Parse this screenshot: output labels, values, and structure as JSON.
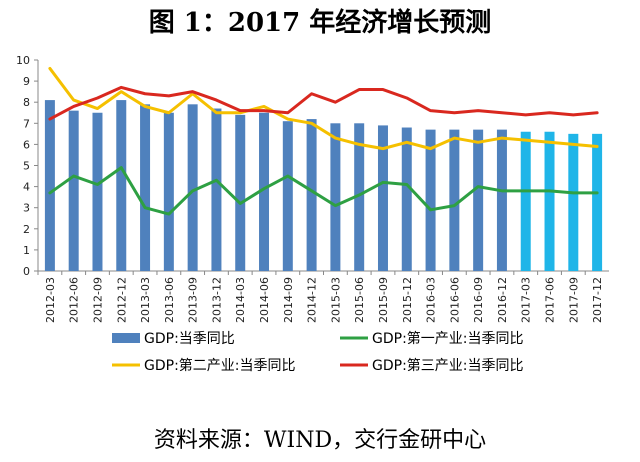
{
  "chart_data": {
    "type": "bar+line",
    "title": "图 1：2017 年经济增长预测",
    "categories": [
      "2012-03",
      "2012-06",
      "2012-09",
      "2012-12",
      "2013-03",
      "2013-06",
      "2013-09",
      "2013-12",
      "2014-03",
      "2014-06",
      "2014-09",
      "2014-12",
      "2015-03",
      "2015-06",
      "2015-09",
      "2015-12",
      "2016-03",
      "2016-06",
      "2016-09",
      "2016-12",
      "2017-03",
      "2017-06",
      "2017-09",
      "2017-12"
    ],
    "ylim": [
      0,
      10
    ],
    "yticks": [
      0,
      1,
      2,
      3,
      4,
      5,
      6,
      7,
      8,
      9,
      10
    ],
    "grid": false,
    "legend_position": "bottom",
    "series": [
      {
        "name": "GDP:当季同比",
        "kind": "bar",
        "color": "#4F81BD",
        "forecast_color": "#1FB5E8",
        "forecast_from_index": 20,
        "values": [
          8.1,
          7.6,
          7.5,
          8.1,
          7.9,
          7.5,
          7.9,
          7.7,
          7.4,
          7.5,
          7.1,
          7.2,
          7.0,
          7.0,
          6.9,
          6.8,
          6.7,
          6.7,
          6.7,
          6.7,
          6.6,
          6.6,
          6.5,
          6.5
        ]
      },
      {
        "name": "GDP:第一产业:当季同比",
        "kind": "line",
        "color": "#2EA043",
        "values": [
          3.7,
          4.5,
          4.1,
          4.9,
          3.0,
          2.7,
          3.8,
          4.3,
          3.2,
          3.9,
          4.5,
          3.8,
          3.1,
          3.6,
          4.2,
          4.1,
          2.9,
          3.1,
          4.0,
          3.8,
          3.8,
          3.8,
          3.7,
          3.7
        ]
      },
      {
        "name": "GDP:第二产业:当季同比",
        "kind": "line",
        "color": "#F5C000",
        "values": [
          9.6,
          8.1,
          7.7,
          8.5,
          7.8,
          7.5,
          8.4,
          7.5,
          7.5,
          7.8,
          7.2,
          7.0,
          6.3,
          6.0,
          5.8,
          6.1,
          5.8,
          6.3,
          6.1,
          6.3,
          6.2,
          6.1,
          6.0,
          5.9
        ]
      },
      {
        "name": "GDP:第三产业:当季同比",
        "kind": "line",
        "color": "#D9281F",
        "values": [
          7.2,
          7.8,
          8.2,
          8.7,
          8.4,
          8.3,
          8.5,
          8.1,
          7.6,
          7.6,
          7.5,
          8.4,
          8.0,
          8.6,
          8.6,
          8.2,
          7.6,
          7.5,
          7.6,
          7.5,
          7.4,
          7.5,
          7.4,
          7.5
        ]
      }
    ],
    "legend": [
      {
        "series_index": 0,
        "label": "GDP:当季同比"
      },
      {
        "series_index": 1,
        "label": "GDP:第一产业:当季同比"
      },
      {
        "series_index": 2,
        "label": "GDP:第二产业:当季同比"
      },
      {
        "series_index": 3,
        "label": "GDP:第三产业:当季同比"
      }
    ]
  },
  "source": "资料来源：WIND，交行金研中心"
}
